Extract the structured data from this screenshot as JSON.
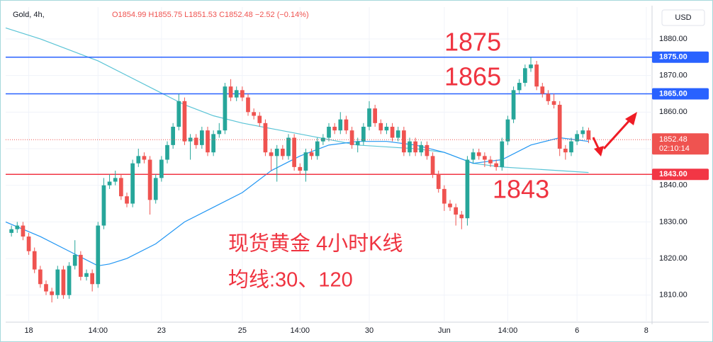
{
  "chart_data": {
    "type": "candlestick",
    "symbol": "Gold, 4h,",
    "ohlc_text": "O1854.99 H1855.75 L1851.53 C1852.48 −2.52 (−0.14%)",
    "currency": "USD",
    "up_color": "#26a69a",
    "down_color": "#ef5350",
    "xlim": [
      -1,
      111
    ],
    "ylim": [
      1802.6,
      1888.7
    ],
    "xticks": [
      {
        "value": 3,
        "label": "18"
      },
      {
        "value": 15,
        "label": "14:00"
      },
      {
        "value": 26,
        "label": "23"
      },
      {
        "value": 40,
        "label": "25"
      },
      {
        "value": 50,
        "label": "14:00"
      },
      {
        "value": 62,
        "label": "30"
      },
      {
        "value": 75,
        "label": "Jun"
      },
      {
        "value": 86,
        "label": "14:00"
      },
      {
        "value": 98,
        "label": "6"
      },
      {
        "value": 110,
        "label": "8"
      }
    ],
    "yticks": [
      {
        "value": 1810,
        "label": "1810.00"
      },
      {
        "value": 1820,
        "label": "1820.00"
      },
      {
        "value": 1830,
        "label": "1830.00"
      },
      {
        "value": 1840,
        "label": "1840.00"
      },
      {
        "value": 1850,
        "label": "1850.00"
      },
      {
        "value": 1860,
        "label": "1860.00"
      },
      {
        "value": 1870,
        "label": "1870.00"
      },
      {
        "value": 1880,
        "label": "1880.00"
      }
    ],
    "grid": true,
    "candles": [
      [
        1827,
        1829,
        1826,
        1828
      ],
      [
        1828,
        1830,
        1827,
        1829
      ],
      [
        1829,
        1830,
        1825,
        1826
      ],
      [
        1826,
        1827,
        1821,
        1822
      ],
      [
        1822,
        1823,
        1816,
        1817
      ],
      [
        1817,
        1818,
        1812,
        1813
      ],
      [
        1813,
        1814,
        1810,
        1811
      ],
      [
        1811,
        1812,
        1808,
        1810
      ],
      [
        1810,
        1818,
        1809,
        1817
      ],
      [
        1817,
        1818,
        1809,
        1810
      ],
      [
        1810,
        1819,
        1809,
        1818
      ],
      [
        1818,
        1825,
        1817,
        1821
      ],
      [
        1821,
        1822,
        1814,
        1815
      ],
      [
        1815,
        1817,
        1814,
        1816
      ],
      [
        1816,
        1817,
        1811,
        1813
      ],
      [
        1813,
        1830,
        1812,
        1829
      ],
      [
        1829,
        1842,
        1828,
        1840
      ],
      [
        1840,
        1843,
        1839,
        1841
      ],
      [
        1841,
        1844,
        1840,
        1842
      ],
      [
        1842,
        1843,
        1836,
        1837
      ],
      [
        1837,
        1838,
        1834,
        1835
      ],
      [
        1835,
        1847,
        1834,
        1846
      ],
      [
        1846,
        1850,
        1845,
        1848
      ],
      [
        1848,
        1849,
        1846,
        1847
      ],
      [
        1847,
        1848,
        1832,
        1836
      ],
      [
        1836,
        1843,
        1835,
        1842
      ],
      [
        1842,
        1848,
        1841,
        1847
      ],
      [
        1847,
        1852,
        1846,
        1851
      ],
      [
        1851,
        1857,
        1850,
        1856
      ],
      [
        1856,
        1865,
        1855,
        1863
      ],
      [
        1863,
        1864,
        1851,
        1852
      ],
      [
        1852,
        1854,
        1847,
        1853
      ],
      [
        1853,
        1854,
        1850,
        1851
      ],
      [
        1851,
        1856,
        1850,
        1855
      ],
      [
        1855,
        1856,
        1848,
        1849
      ],
      [
        1849,
        1855,
        1848,
        1854
      ],
      [
        1854,
        1857,
        1853,
        1855
      ],
      [
        1855,
        1868,
        1854,
        1867
      ],
      [
        1867,
        1869,
        1863,
        1864
      ],
      [
        1864,
        1867,
        1863,
        1866
      ],
      [
        1866,
        1867,
        1863,
        1864
      ],
      [
        1864,
        1865,
        1859,
        1860
      ],
      [
        1860,
        1861,
        1858,
        1859
      ],
      [
        1859,
        1860,
        1856,
        1857
      ],
      [
        1857,
        1858,
        1848,
        1849
      ],
      [
        1849,
        1850,
        1844,
        1848
      ],
      [
        1848,
        1851,
        1841,
        1850
      ],
      [
        1850,
        1851,
        1847,
        1848
      ],
      [
        1848,
        1854,
        1847,
        1853
      ],
      [
        1853,
        1854,
        1844,
        1845
      ],
      [
        1845,
        1846,
        1843,
        1844
      ],
      [
        1844,
        1850,
        1841,
        1849
      ],
      [
        1849,
        1850,
        1847,
        1848
      ],
      [
        1848,
        1853,
        1847,
        1852
      ],
      [
        1852,
        1854,
        1851,
        1853
      ],
      [
        1853,
        1857,
        1852,
        1856
      ],
      [
        1856,
        1857,
        1854,
        1855
      ],
      [
        1855,
        1860,
        1854,
        1858
      ],
      [
        1858,
        1859,
        1854,
        1855
      ],
      [
        1855,
        1856,
        1850,
        1851
      ],
      [
        1851,
        1853,
        1849,
        1852
      ],
      [
        1852,
        1857,
        1851,
        1856
      ],
      [
        1856,
        1863,
        1855,
        1861
      ],
      [
        1861,
        1862,
        1856,
        1857
      ],
      [
        1857,
        1858,
        1854,
        1855
      ],
      [
        1855,
        1857,
        1854,
        1856
      ],
      [
        1856,
        1857,
        1852,
        1853
      ],
      [
        1853,
        1856,
        1852,
        1855
      ],
      [
        1855,
        1856,
        1848,
        1849
      ],
      [
        1849,
        1853,
        1848,
        1852
      ],
      [
        1852,
        1853,
        1848,
        1849
      ],
      [
        1849,
        1852,
        1848,
        1851
      ],
      [
        1851,
        1852,
        1847,
        1848
      ],
      [
        1848,
        1849,
        1842,
        1843
      ],
      [
        1843,
        1844,
        1838,
        1839
      ],
      [
        1839,
        1840,
        1833,
        1835
      ],
      [
        1835,
        1836,
        1833,
        1834
      ],
      [
        1834,
        1835,
        1829,
        1832
      ],
      [
        1832,
        1833,
        1828,
        1831
      ],
      [
        1831,
        1848,
        1829,
        1847
      ],
      [
        1847,
        1850,
        1846,
        1849
      ],
      [
        1849,
        1850,
        1847,
        1848
      ],
      [
        1848,
        1849,
        1845,
        1847
      ],
      [
        1847,
        1848,
        1845,
        1846
      ],
      [
        1846,
        1847,
        1844,
        1845
      ],
      [
        1845,
        1853,
        1844,
        1852
      ],
      [
        1852,
        1859,
        1851,
        1858
      ],
      [
        1858,
        1867,
        1857,
        1866
      ],
      [
        1866,
        1869,
        1865,
        1868
      ],
      [
        1868,
        1873,
        1867,
        1872
      ],
      [
        1872,
        1875,
        1871,
        1873
      ],
      [
        1873,
        1874,
        1866,
        1867
      ],
      [
        1867,
        1868,
        1864,
        1865
      ],
      [
        1865,
        1866,
        1862,
        1863
      ],
      [
        1863,
        1865,
        1861,
        1862
      ],
      [
        1862,
        1863,
        1848,
        1850
      ],
      [
        1850,
        1851,
        1847,
        1849
      ],
      [
        1849,
        1853,
        1848,
        1852
      ],
      [
        1852,
        1855,
        1851,
        1854
      ],
      [
        1854,
        1856,
        1853,
        1855
      ],
      [
        1854.99,
        1855.75,
        1851.53,
        1852.48
      ]
    ],
    "lines": [
      {
        "color": "#5bc4d6",
        "x": [
          -1,
          5,
          10,
          15,
          20,
          25,
          30,
          35,
          40,
          45,
          50,
          55,
          60,
          65,
          70,
          75,
          80,
          85,
          90,
          95,
          100
        ],
        "values": [
          1883,
          1880,
          1877,
          1874,
          1870,
          1866,
          1862,
          1859,
          1857,
          1855.5,
          1854,
          1852.5,
          1851,
          1850.5,
          1850,
          1849,
          1846,
          1845,
          1844.5,
          1844,
          1843.5
        ]
      },
      {
        "color": "#2196f3",
        "x": [
          -1,
          5,
          10,
          15,
          17,
          20,
          25,
          30,
          35,
          40,
          45,
          50,
          55,
          60,
          65,
          70,
          75,
          80,
          85,
          90,
          95,
          100
        ],
        "values": [
          1830,
          1826,
          1822,
          1818,
          1818.5,
          1820,
          1824,
          1830,
          1834,
          1838,
          1844,
          1848,
          1851,
          1852,
          1852,
          1851,
          1849,
          1846,
          1847,
          1851,
          1853,
          1852
        ]
      }
    ],
    "hlines": [
      {
        "value": 1875,
        "label": "1875.00",
        "color": "#2962ff"
      },
      {
        "value": 1865,
        "label": "1865.00",
        "color": "#2962ff"
      },
      {
        "value": 1843,
        "label": "1843.00",
        "color": "#f23645"
      }
    ],
    "last_price": {
      "value": 1852.48,
      "label": "1852.48",
      "countdown": "02:10:14",
      "color": "#ef5350"
    },
    "annotations": [
      "1875",
      "1865",
      "1843",
      "现货黄金 4小时K线",
      "均线:30、120"
    ]
  }
}
